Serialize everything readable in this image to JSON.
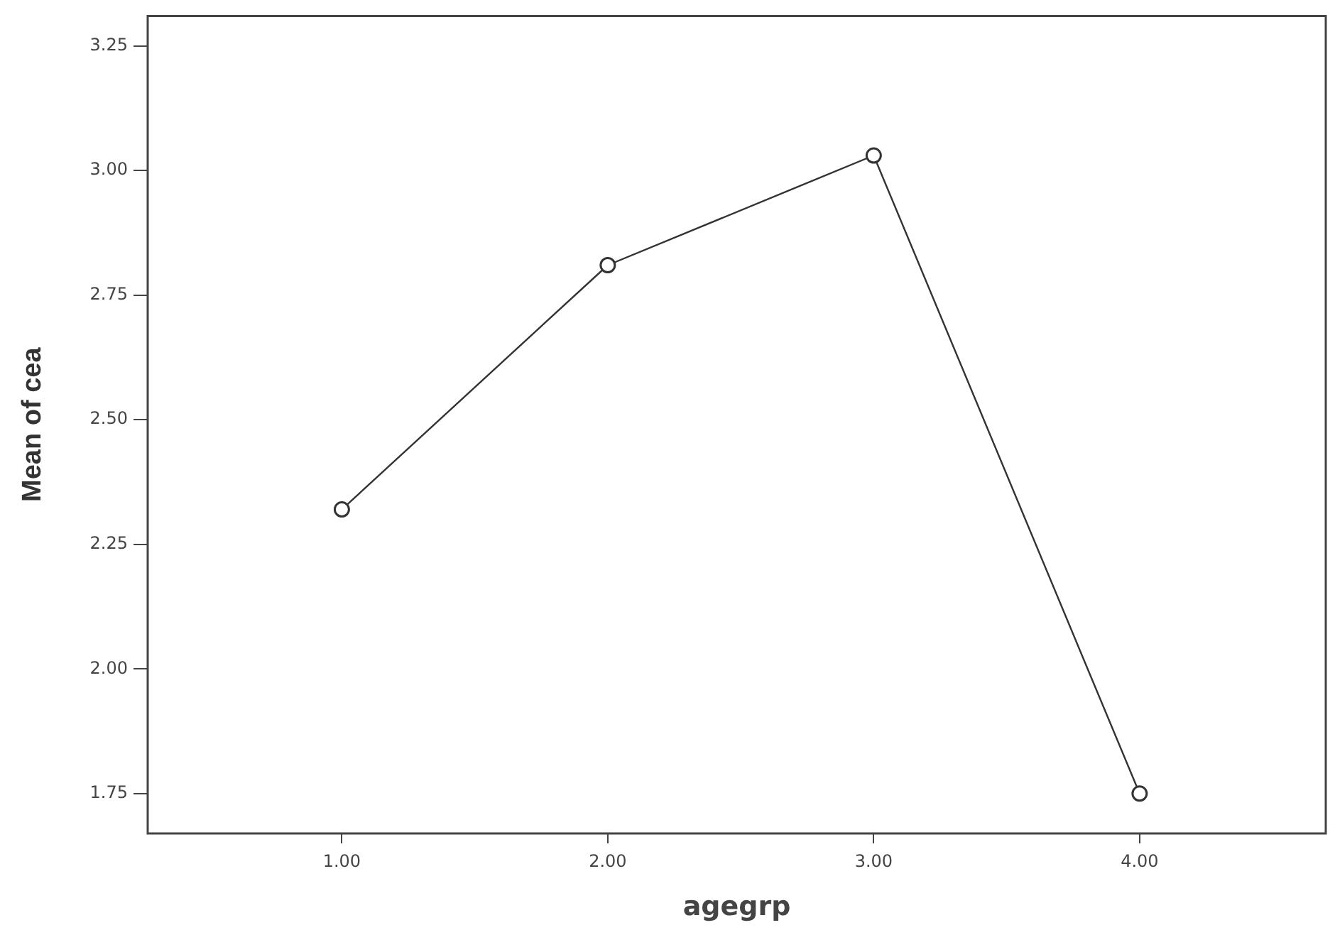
{
  "chart_data": {
    "type": "line",
    "xlabel": "agegrp",
    "ylabel": "Mean of cea",
    "x": [
      1,
      2,
      3,
      4
    ],
    "series": [
      {
        "color": "#333333",
        "values": [
          2.32,
          2.81,
          3.03,
          1.75
        ]
      }
    ],
    "xlim": [
      0.27,
      4.7
    ],
    "xticks": [
      {
        "value": 1,
        "label": "1.00"
      },
      {
        "value": 2,
        "label": "2.00"
      },
      {
        "value": 3,
        "label": "3.00"
      },
      {
        "value": 4,
        "label": "4.00"
      }
    ],
    "ylim": [
      1.67,
      3.31
    ],
    "yticks": [
      {
        "value": 1.75,
        "label": "1.75"
      },
      {
        "value": 2,
        "label": "2.00"
      },
      {
        "value": 2.25,
        "label": "2.25"
      },
      {
        "value": 2.5,
        "label": "2.50"
      },
      {
        "value": 2.75,
        "label": "2.75"
      },
      {
        "value": 3,
        "label": "3.00"
      },
      {
        "value": 3.25,
        "label": "3.25"
      }
    ],
    "grid": false,
    "legend": false,
    "marker": "circle",
    "line_style": "solid"
  }
}
